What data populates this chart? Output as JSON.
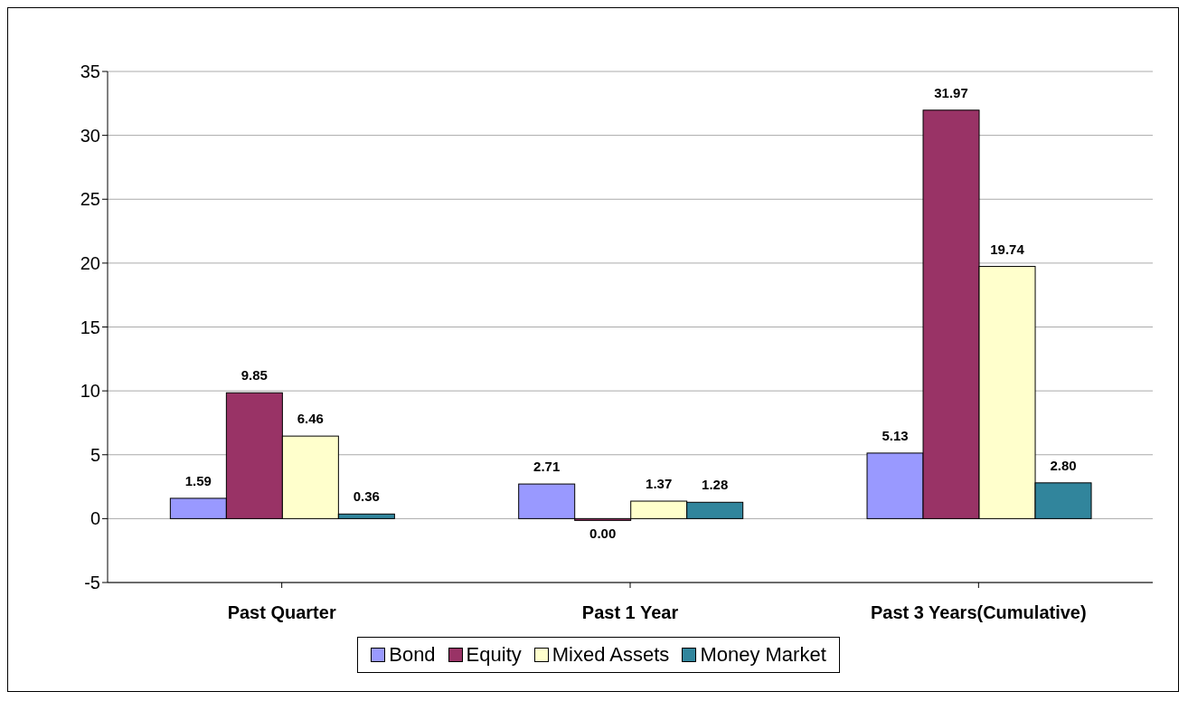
{
  "chart_data": {
    "type": "bar",
    "categories": [
      "Past Quarter",
      "Past 1 Year",
      "Past 3 Years(Cumulative)"
    ],
    "series": [
      {
        "name": "Bond",
        "color": "#9999ff",
        "values": [
          1.59,
          2.71,
          5.13
        ],
        "value_labels": [
          "1.59",
          "2.71",
          "5.13"
        ]
      },
      {
        "name": "Equity",
        "color": "#993366",
        "values": [
          9.85,
          0,
          31.97
        ],
        "value_labels": [
          "9.85",
          "0.00",
          "31.97"
        ]
      },
      {
        "name": "Mixed Assets",
        "color": "#ffffcc",
        "values": [
          6.46,
          1.37,
          19.74
        ],
        "value_labels": [
          "6.46",
          "1.37",
          "19.74"
        ]
      },
      {
        "name": "Money Market",
        "color": "#31859c",
        "values": [
          0.36,
          1.28,
          2.8
        ],
        "value_labels": [
          "0.36",
          "1.28",
          "2.80"
        ]
      }
    ],
    "ylim": [
      -5,
      35
    ],
    "yticks": [
      -5,
      0,
      5,
      10,
      15,
      20,
      25,
      30,
      35
    ],
    "grid": "y",
    "legend": "bottom"
  }
}
